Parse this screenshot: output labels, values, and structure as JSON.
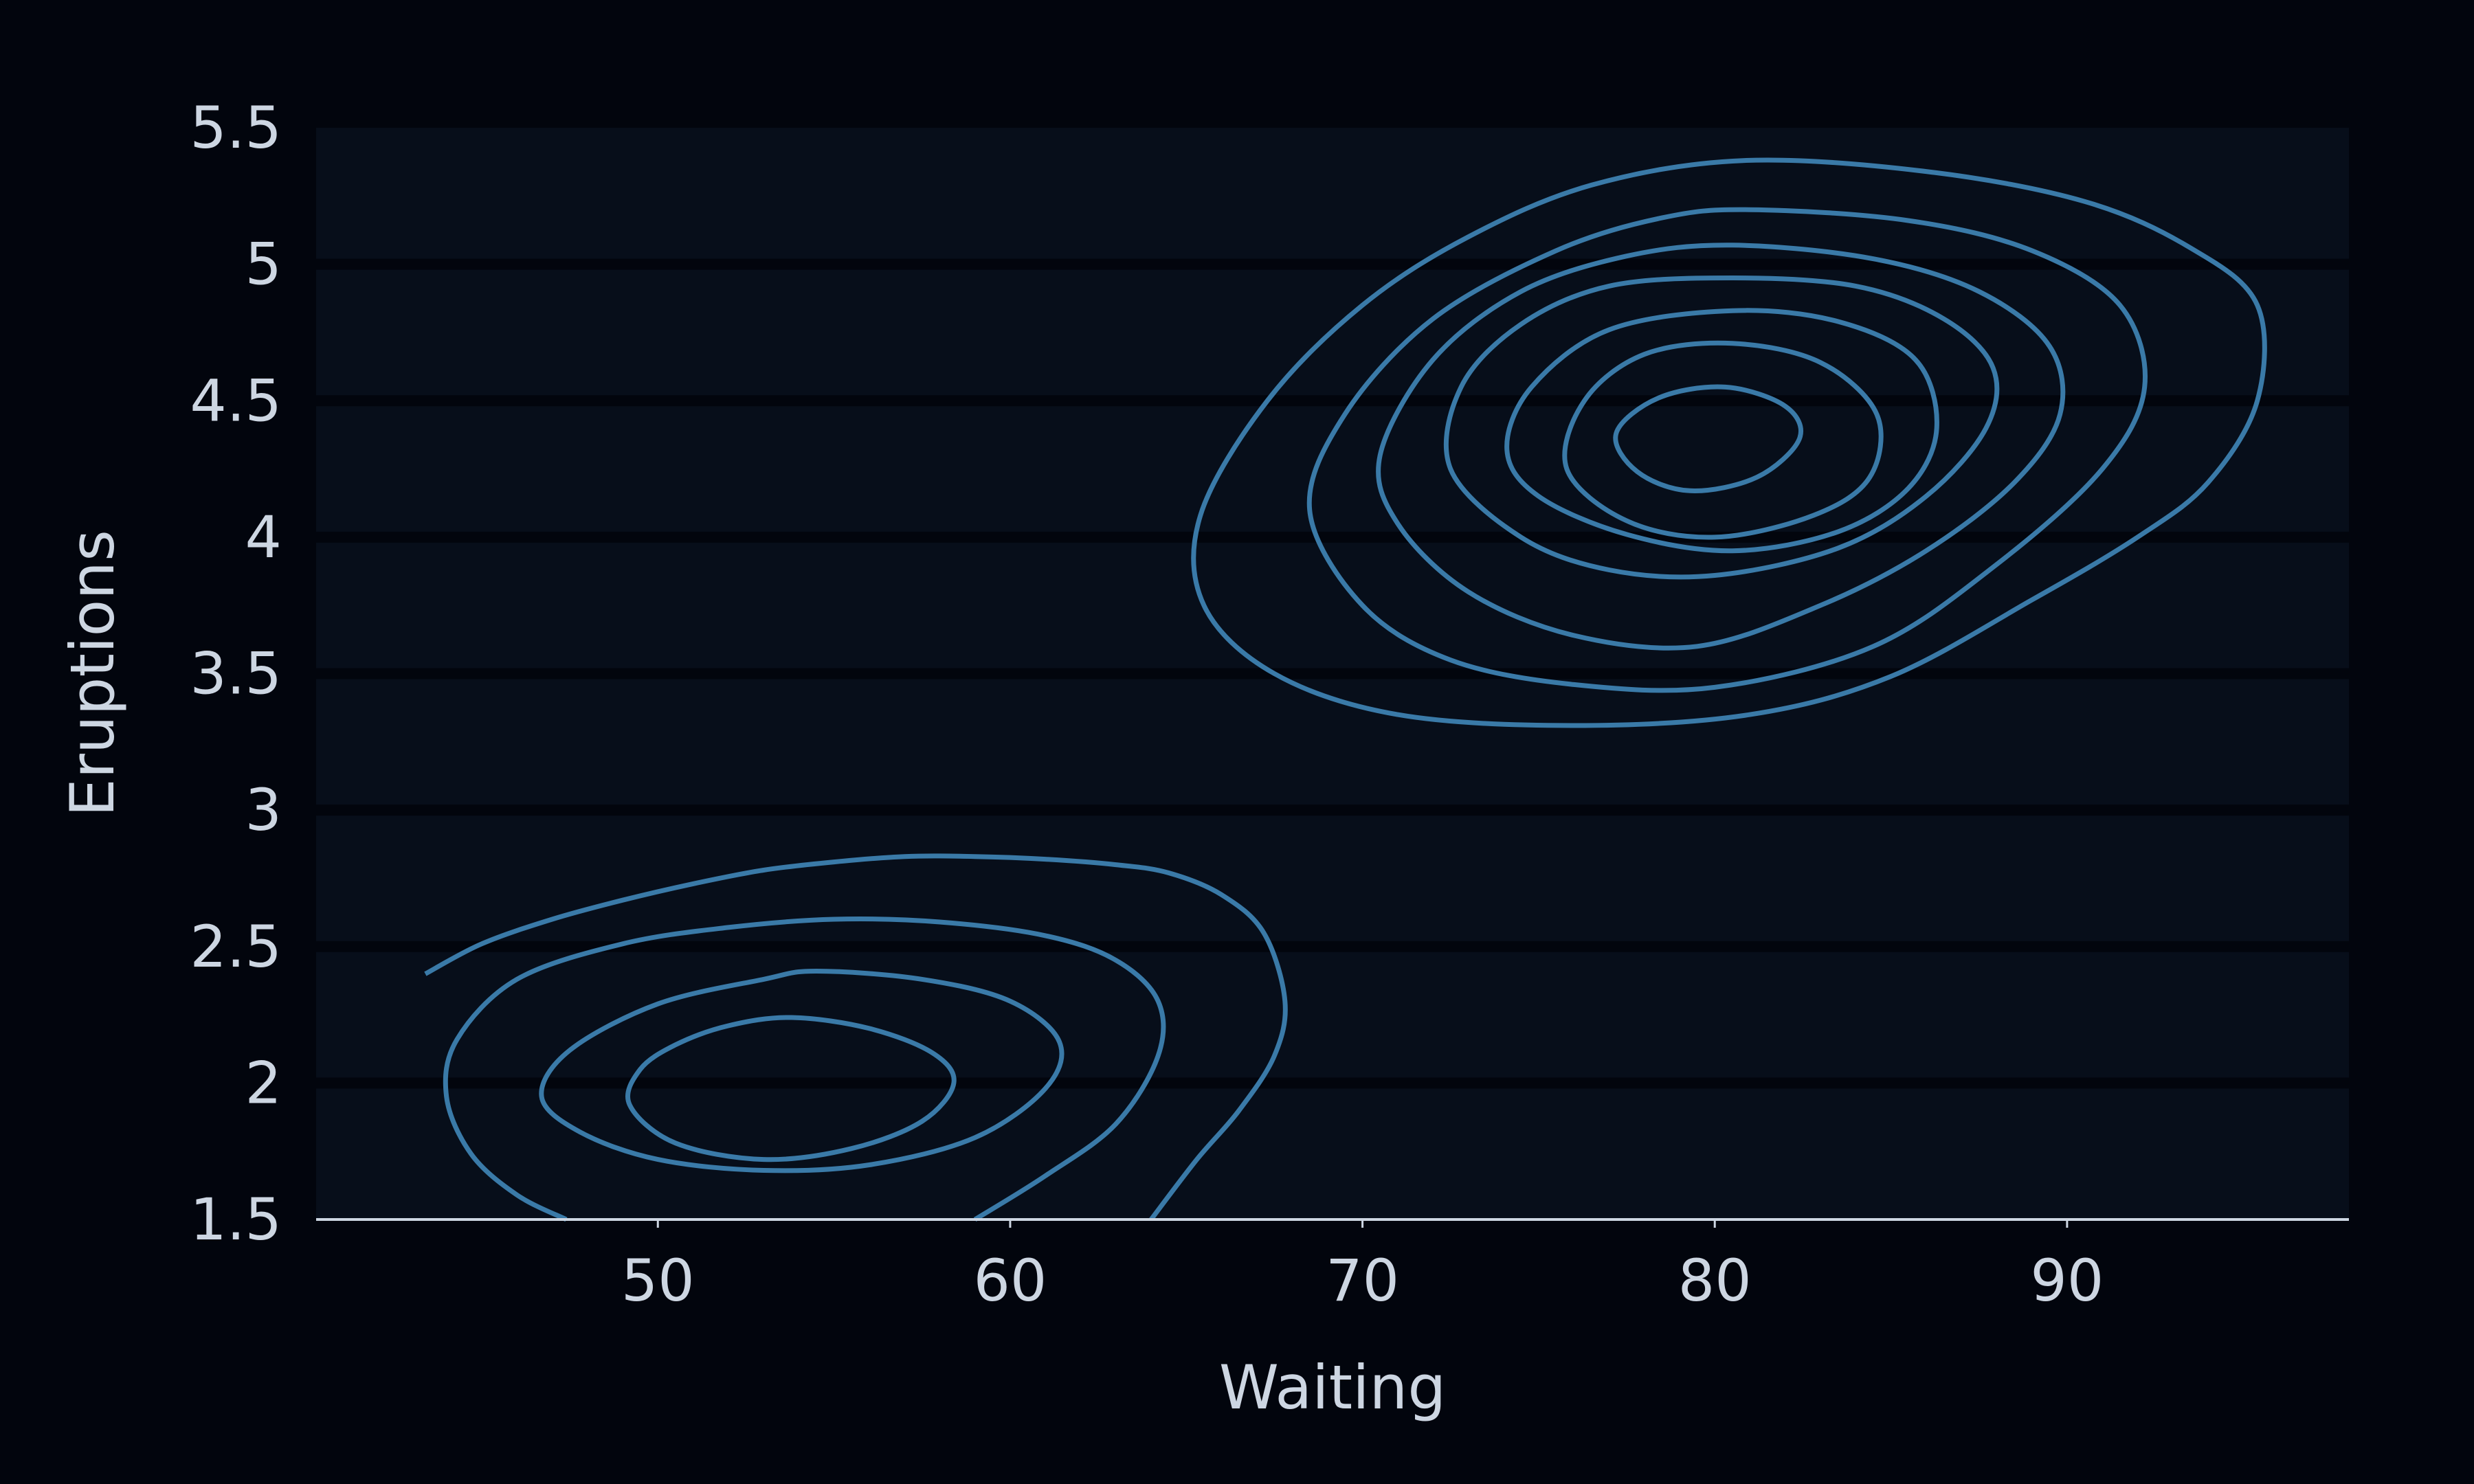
{
  "chart_data": {
    "type": "contour",
    "title": "",
    "xlabel": "Waiting",
    "ylabel": "Eruptions",
    "xlim": [
      40.3,
      98.0
    ],
    "ylim": [
      1.5,
      5.5
    ],
    "x_ticks": [
      50,
      60,
      70,
      80,
      90
    ],
    "x_tick_labels": [
      "50",
      "60",
      "70",
      "80",
      "90"
    ],
    "y_ticks": [
      1.5,
      2,
      2.5,
      3,
      3.5,
      4,
      4.5,
      5,
      5.5
    ],
    "y_tick_labels": [
      "1.5",
      "2",
      "2.5",
      "3",
      "3.5",
      "4",
      "4.5",
      "5",
      "5.5"
    ],
    "grid": "horizontal",
    "legend": "none",
    "colors": {
      "background": "#02050d",
      "plot_background": "#070e1a",
      "gridline": "#02050d",
      "contour_line": "#3a7aa8",
      "axis_line": "#cdd6e2",
      "text": "#cdd6e2"
    },
    "contours": [
      {
        "x": [
          43.4,
          45.0,
          47.0,
          49.0,
          51.0,
          53.0,
          55.0,
          57.0,
          59.0,
          61.0,
          63.0,
          64.5,
          66.0,
          67.2,
          67.8,
          67.5,
          66.5,
          65.3,
          64.0
        ],
        "y": [
          2.4,
          2.51,
          2.6,
          2.67,
          2.73,
          2.78,
          2.81,
          2.83,
          2.83,
          2.82,
          2.8,
          2.77,
          2.69,
          2.55,
          2.3,
          2.1,
          1.9,
          1.72,
          1.5
        ]
      },
      {
        "x": [
          47.4,
          46.0,
          44.7,
          44.0,
          44.3,
          46.0,
          49.0,
          52.0,
          55.0,
          58.0,
          61.0,
          63.0,
          64.2,
          64.2,
          63.0,
          61.0,
          59.0
        ],
        "y": [
          1.5,
          1.59,
          1.74,
          1.95,
          2.16,
          2.38,
          2.51,
          2.57,
          2.6,
          2.59,
          2.54,
          2.45,
          2.3,
          2.1,
          1.85,
          1.66,
          1.5
        ]
      },
      {
        "x": [
          54.5,
          57.5,
          60.0,
          61.4,
          61.0,
          59.0,
          56.0,
          53.0,
          50.0,
          47.8,
          46.7,
          47.5,
          50.0,
          53.0
        ],
        "y": [
          2.41,
          2.38,
          2.3,
          2.15,
          1.98,
          1.8,
          1.7,
          1.68,
          1.72,
          1.82,
          1.95,
          2.12,
          2.29,
          2.38
        ],
        "closed": true
      },
      {
        "x": [
          53.8,
          56.0,
          57.8,
          58.4,
          57.5,
          55.5,
          53.0,
          50.5,
          49.2,
          49.5,
          50.5,
          52.0
        ],
        "y": [
          2.24,
          2.2,
          2.11,
          2.0,
          1.86,
          1.76,
          1.72,
          1.78,
          1.92,
          2.05,
          2.14,
          2.21
        ],
        "closed": true
      },
      {
        "x": [
          80.8,
          86.0,
          90.5,
          93.5,
          95.4,
          95.4,
          94.0,
          92.0,
          89.0,
          85.0,
          81.0,
          76.0,
          71.0,
          67.5,
          65.5,
          65.4,
          67.3,
          70.0,
          73.0,
          76.5
        ],
        "y": [
          5.38,
          5.34,
          5.23,
          5.06,
          4.85,
          4.5,
          4.2,
          4.0,
          3.77,
          3.49,
          3.35,
          3.31,
          3.35,
          3.5,
          3.75,
          4.08,
          4.5,
          4.85,
          5.1,
          5.29
        ],
        "closed": true
      },
      {
        "x": [
          81.0,
          85.5,
          89.0,
          91.5,
          92.2,
          91.0,
          88.0,
          84.5,
          80.0,
          76.0,
          72.5,
          70.0,
          68.5,
          69.5,
          72.0,
          75.5,
          78.5
        ],
        "y": [
          5.2,
          5.16,
          5.05,
          4.85,
          4.55,
          4.25,
          3.9,
          3.6,
          3.45,
          3.46,
          3.55,
          3.75,
          4.1,
          4.45,
          4.8,
          5.05,
          5.17
        ],
        "closed": true
      },
      {
        "x": [
          80.5,
          84.5,
          87.5,
          89.5,
          89.8,
          88.5,
          86.0,
          83.0,
          79.5,
          76.0,
          73.0,
          71.0,
          70.5,
          72.0,
          74.5,
          77.5
        ],
        "y": [
          5.07,
          5.02,
          4.9,
          4.7,
          4.45,
          4.2,
          3.95,
          3.75,
          3.6,
          3.64,
          3.8,
          4.05,
          4.3,
          4.65,
          4.9,
          5.03
        ],
        "closed": true
      },
      {
        "x": [
          80.5,
          84.0,
          86.5,
          87.9,
          87.7,
          86.0,
          83.5,
          80.0,
          77.0,
          74.5,
          72.5,
          72.8,
          74.5,
          77.0
        ],
        "y": [
          4.95,
          4.92,
          4.8,
          4.62,
          4.4,
          4.15,
          3.96,
          3.86,
          3.88,
          4.0,
          4.25,
          4.55,
          4.78,
          4.92
        ],
        "closed": true
      },
      {
        "x": [
          80.5,
          83.5,
          85.7,
          86.3,
          85.5,
          83.5,
          80.5,
          77.5,
          75.0,
          74.1,
          74.8,
          77.0
        ],
        "y": [
          4.83,
          4.79,
          4.65,
          4.4,
          4.18,
          4.02,
          3.95,
          4.01,
          4.15,
          4.32,
          4.55,
          4.76
        ],
        "closed": true
      },
      {
        "x": [
          80.5,
          83.0,
          84.6,
          84.4,
          82.8,
          80.0,
          77.5,
          75.8,
          76.3,
          78.0
        ],
        "y": [
          4.71,
          4.64,
          4.45,
          4.22,
          4.08,
          4.0,
          4.06,
          4.25,
          4.5,
          4.67
        ],
        "closed": true
      },
      {
        "x": [
          80.3,
          82.0,
          82.4,
          81.2,
          79.3,
          77.8,
          77.2,
          78.4
        ],
        "y": [
          4.55,
          4.48,
          4.36,
          4.22,
          4.17,
          4.24,
          4.38,
          4.51
        ],
        "closed": true
      }
    ]
  }
}
